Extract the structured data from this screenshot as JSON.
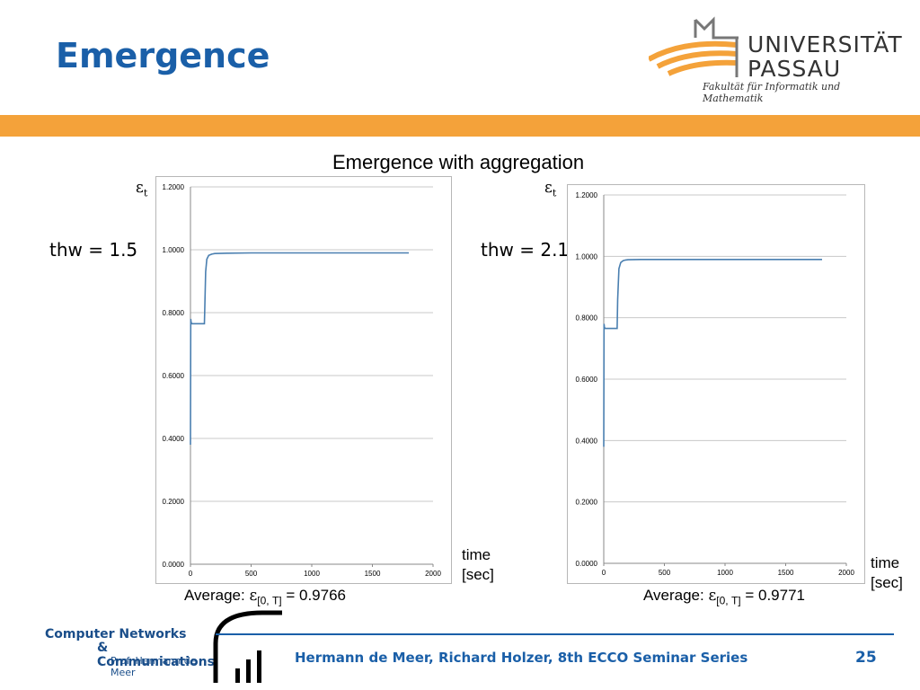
{
  "slide": {
    "title": "Emergence",
    "subtitle": "Emergence with aggregation",
    "footer": "Hermann de Meer, Richard Holzer, 8th ECCO Seminar Series",
    "page_number": "25"
  },
  "logo_university": {
    "line1": "UNIVERSITÄT",
    "line2": "PASSAU",
    "faculty": "Fakultät für Informatik und Mathematik"
  },
  "logo_group": {
    "line1": "Computer Networks",
    "line2": "& Communications",
    "line3": "Prof. Hermann de Meer"
  },
  "colors": {
    "title_blue": "#1a5fa8",
    "orange_bar": "#f4a23a",
    "series_line": "#4a7fb0"
  },
  "panels": [
    {
      "eps_symbol": "ε",
      "eps_sub": "t",
      "thw_label": "thw = 1.5",
      "time_label_1": "time",
      "time_label_2": "[sec]",
      "avg_prefix": "Average: ",
      "avg_sub": "[0, T]",
      "avg_value": " = 0.9766"
    },
    {
      "eps_symbol": "ε",
      "eps_sub": "t",
      "thw_label": "thw = 2.1",
      "time_label_1": "time",
      "time_label_2": "[sec]",
      "avg_prefix": "Average: ",
      "avg_sub": "[0, T]",
      "avg_value": " = 0.9771"
    }
  ],
  "chart_data": [
    {
      "type": "line",
      "xlim": [
        0,
        2000
      ],
      "ylim": [
        0,
        1.2
      ],
      "x_ticks": [
        "0",
        "500",
        "1000",
        "1500",
        "2000"
      ],
      "y_ticks": [
        "0.0000",
        "0.2000",
        "0.4000",
        "0.6000",
        "0.8000",
        "1.0000",
        "1.2000"
      ],
      "grid": "horizontal",
      "series": [
        {
          "x": [
            0,
            2,
            5,
            10,
            100,
            115,
            118,
            125,
            135,
            150,
            175,
            200,
            300,
            500,
            800,
            1000,
            1200,
            1400,
            1600,
            1700,
            1800
          ],
          "y": [
            0.38,
            0.78,
            0.77,
            0.765,
            0.765,
            0.765,
            0.81,
            0.93,
            0.97,
            0.982,
            0.986,
            0.988,
            0.989,
            0.99,
            0.99,
            0.99,
            0.99,
            0.99,
            0.99,
            0.99,
            0.99
          ]
        }
      ]
    },
    {
      "type": "line",
      "xlim": [
        0,
        2000
      ],
      "ylim": [
        0,
        1.2
      ],
      "x_ticks": [
        "0",
        "500",
        "1000",
        "1500",
        "2000"
      ],
      "y_ticks": [
        "0.0000",
        "0.2000",
        "0.4000",
        "0.6000",
        "0.8000",
        "1.0000",
        "1.2000"
      ],
      "grid": "horizontal",
      "series": [
        {
          "x": [
            0,
            2,
            5,
            10,
            100,
            110,
            115,
            125,
            140,
            160,
            180,
            200,
            300,
            500,
            800,
            1000,
            1200,
            1400,
            1600,
            1700,
            1800
          ],
          "y": [
            0.38,
            0.78,
            0.77,
            0.765,
            0.765,
            0.765,
            0.86,
            0.96,
            0.98,
            0.986,
            0.988,
            0.989,
            0.99,
            0.99,
            0.99,
            0.99,
            0.99,
            0.99,
            0.99,
            0.99,
            0.99
          ]
        }
      ]
    }
  ]
}
